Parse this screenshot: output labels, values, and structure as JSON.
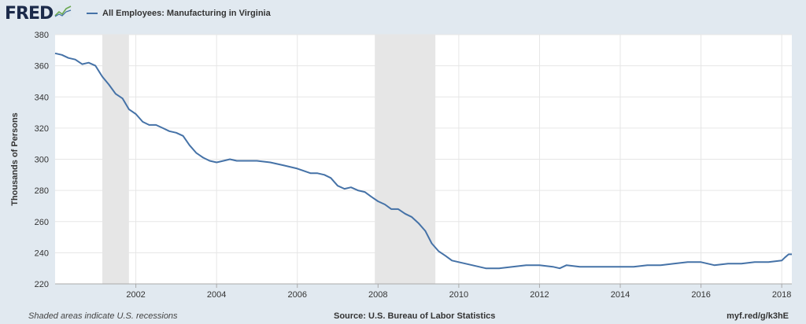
{
  "header": {
    "logo_text": "FRED",
    "logo_icon": "fred-graph-icon",
    "legend_label": "All Employees: Manufacturing in Virginia"
  },
  "footer": {
    "note": "Shaded areas indicate U.S. recessions",
    "source": "Source: U.S. Bureau of Labor Statistics",
    "url": "myf.red/g/k3hE"
  },
  "colors": {
    "line": "#4572a7",
    "recession": "#e6e6e6",
    "background": "#e1e9f0",
    "plot": "#ffffff"
  },
  "chart_data": {
    "type": "line",
    "title": "",
    "xlabel": "",
    "ylabel": "Thousands of Persons",
    "xlim": [
      2000.0,
      2018.25
    ],
    "ylim": [
      220,
      380
    ],
    "yticks": [
      220,
      240,
      260,
      280,
      300,
      320,
      340,
      360,
      380
    ],
    "xticks": [
      2002,
      2004,
      2006,
      2008,
      2010,
      2012,
      2014,
      2016,
      2018
    ],
    "grid": true,
    "legend_position": "top-left",
    "recessions": [
      [
        2001.17,
        2001.83
      ],
      [
        2007.92,
        2009.42
      ]
    ],
    "series": [
      {
        "name": "All Employees: Manufacturing in Virginia",
        "x": [
          2000.0,
          2000.17,
          2000.33,
          2000.5,
          2000.67,
          2000.83,
          2001.0,
          2001.17,
          2001.33,
          2001.5,
          2001.67,
          2001.83,
          2002.0,
          2002.17,
          2002.33,
          2002.5,
          2002.67,
          2002.83,
          2003.0,
          2003.17,
          2003.33,
          2003.5,
          2003.67,
          2003.83,
          2004.0,
          2004.17,
          2004.33,
          2004.5,
          2004.67,
          2004.83,
          2005.0,
          2005.33,
          2005.67,
          2006.0,
          2006.33,
          2006.5,
          2006.67,
          2006.83,
          2007.0,
          2007.17,
          2007.33,
          2007.5,
          2007.67,
          2007.83,
          2008.0,
          2008.17,
          2008.33,
          2008.5,
          2008.67,
          2008.83,
          2009.0,
          2009.17,
          2009.33,
          2009.5,
          2009.67,
          2009.83,
          2010.0,
          2010.33,
          2010.67,
          2011.0,
          2011.33,
          2011.67,
          2012.0,
          2012.33,
          2012.5,
          2012.67,
          2013.0,
          2013.33,
          2013.67,
          2014.0,
          2014.33,
          2014.67,
          2015.0,
          2015.33,
          2015.67,
          2016.0,
          2016.33,
          2016.67,
          2017.0,
          2017.33,
          2017.67,
          2018.0,
          2018.08,
          2018.17,
          2018.25
        ],
        "y": [
          368.0,
          367.0,
          365.0,
          364.0,
          361.0,
          362.0,
          360.0,
          353.0,
          348.0,
          342.0,
          339.0,
          332.0,
          329.0,
          324.0,
          322.0,
          322.0,
          320.0,
          318.0,
          317.0,
          315.0,
          309.0,
          304.0,
          301.0,
          299.0,
          298.0,
          299.0,
          300.0,
          299.0,
          299.0,
          299.0,
          299.0,
          298.0,
          296.0,
          294.0,
          291.0,
          291.0,
          290.0,
          288.0,
          283.0,
          281.0,
          282.0,
          280.0,
          279.0,
          276.0,
          273.0,
          271.0,
          268.0,
          268.0,
          265.0,
          263.0,
          259.0,
          254.0,
          246.0,
          241.0,
          238.0,
          235.0,
          234.0,
          232.0,
          230.0,
          230.0,
          231.0,
          232.0,
          232.0,
          231.0,
          230.0,
          232.0,
          231.0,
          231.0,
          231.0,
          231.0,
          231.0,
          232.0,
          232.0,
          233.0,
          234.0,
          234.0,
          232.0,
          233.0,
          233.0,
          234.0,
          234.0,
          235.0,
          237.0,
          239.0,
          239.0
        ]
      }
    ]
  }
}
